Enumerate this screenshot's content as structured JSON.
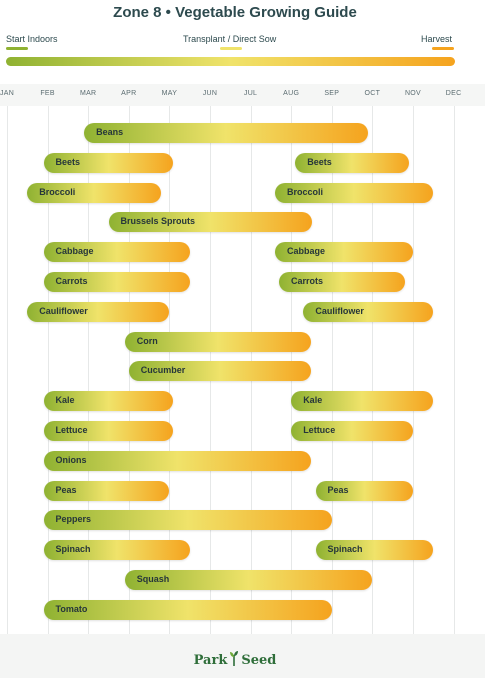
{
  "chart_data": {
    "type": "bar",
    "title": "Zone 8  •  Vegetable Growing Guide",
    "legend": {
      "placement": "top",
      "items": [
        {
          "label": "Start Indoors",
          "color": "#8fb232"
        },
        {
          "label": "Transplant / Direct Sow",
          "color": "#f0e36a"
        },
        {
          "label": "Harvest",
          "color": "#f5a31e"
        }
      ]
    },
    "months": [
      "JAN",
      "FEB",
      "MAR",
      "APR",
      "MAY",
      "JUN",
      "JUL",
      "AUG",
      "SEP",
      "OCT",
      "NOV",
      "DEC"
    ],
    "xlim": [
      0,
      11
    ],
    "grid": true,
    "crops": [
      {
        "name": "Beans",
        "periods": [
          [
            1.9,
            8.9
          ]
        ]
      },
      {
        "name": "Beets",
        "periods": [
          [
            0.9,
            4.1
          ],
          [
            7.1,
            9.9
          ]
        ]
      },
      {
        "name": "Broccoli",
        "periods": [
          [
            0.5,
            3.8
          ],
          [
            6.6,
            10.5
          ]
        ]
      },
      {
        "name": "Brussels Sprouts",
        "periods": [
          [
            2.5,
            7.5
          ]
        ]
      },
      {
        "name": "Cabbage",
        "periods": [
          [
            0.9,
            4.5
          ],
          [
            6.6,
            10.0
          ]
        ]
      },
      {
        "name": "Carrots",
        "periods": [
          [
            0.9,
            4.5
          ],
          [
            6.7,
            9.8
          ]
        ]
      },
      {
        "name": "Cauliflower",
        "periods": [
          [
            0.5,
            4.0
          ],
          [
            7.3,
            10.5
          ]
        ]
      },
      {
        "name": "Corn",
        "periods": [
          [
            2.9,
            7.5
          ]
        ]
      },
      {
        "name": "Cucumber",
        "periods": [
          [
            3.0,
            7.5
          ]
        ]
      },
      {
        "name": "Kale",
        "periods": [
          [
            0.9,
            4.1
          ],
          [
            7.0,
            10.5
          ]
        ]
      },
      {
        "name": "Lettuce",
        "periods": [
          [
            0.9,
            4.1
          ],
          [
            7.0,
            10.0
          ]
        ]
      },
      {
        "name": "Onions",
        "periods": [
          [
            0.9,
            7.5
          ]
        ]
      },
      {
        "name": "Peas",
        "periods": [
          [
            0.9,
            4.0
          ],
          [
            7.6,
            10.0
          ]
        ]
      },
      {
        "name": "Peppers",
        "periods": [
          [
            0.9,
            8.0
          ]
        ]
      },
      {
        "name": "Spinach",
        "periods": [
          [
            0.9,
            4.5
          ],
          [
            7.6,
            10.5
          ]
        ]
      },
      {
        "name": "Squash",
        "periods": [
          [
            2.9,
            9.0
          ]
        ]
      },
      {
        "name": "Tomato",
        "periods": [
          [
            0.9,
            8.0
          ]
        ]
      }
    ]
  },
  "footer": {
    "logo_left": "Park",
    "logo_right": "Seed",
    "logo_icon": "seedling-icon"
  }
}
